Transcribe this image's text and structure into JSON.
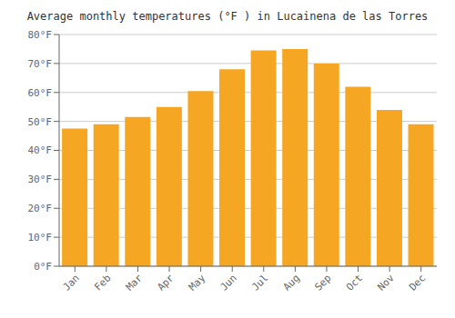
{
  "chart_data": {
    "type": "bar",
    "title": "Average monthly temperatures (°F ) in Lucainena de las Torres",
    "categories": [
      "Jan",
      "Feb",
      "Mar",
      "Apr",
      "May",
      "Jun",
      "Jul",
      "Aug",
      "Sep",
      "Oct",
      "Nov",
      "Dec"
    ],
    "values": [
      47.5,
      49.0,
      51.5,
      55.0,
      60.5,
      68.0,
      74.5,
      75.0,
      70.0,
      62.0,
      54.0,
      49.0
    ],
    "color": "#F5A623",
    "ylim": [
      0,
      80
    ],
    "yticks": [
      {
        "value": 0,
        "label": "0°F"
      },
      {
        "value": 10,
        "label": "10°F"
      },
      {
        "value": 20,
        "label": "20°F"
      },
      {
        "value": 30,
        "label": "30°F"
      },
      {
        "value": 40,
        "label": "40°F"
      },
      {
        "value": 50,
        "label": "50°F"
      },
      {
        "value": 60,
        "label": "60°F"
      },
      {
        "value": 70,
        "label": "70°F"
      },
      {
        "value": 80,
        "label": "80°F"
      }
    ],
    "grid": true
  }
}
